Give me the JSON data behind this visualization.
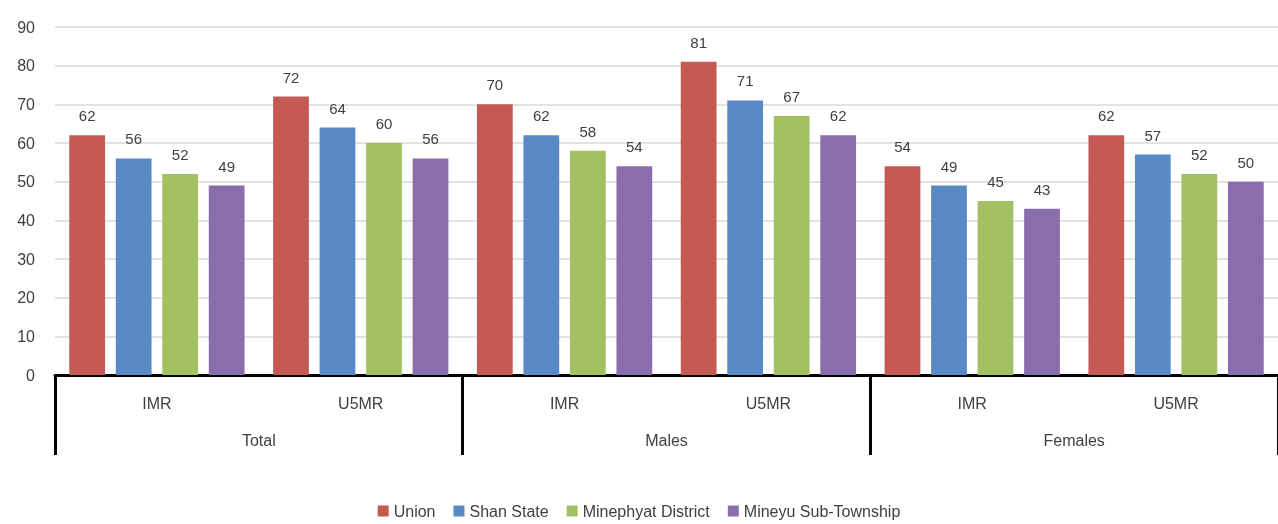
{
  "chart_data": {
    "type": "bar",
    "categories": [
      "IMR",
      "U5MR",
      "IMR",
      "U5MR",
      "IMR",
      "U5MR"
    ],
    "series": [
      {
        "name": "Union",
        "color": "#c55a55",
        "values": [
          62,
          72,
          70,
          81,
          54,
          62
        ]
      },
      {
        "name": "Shan State",
        "color": "#5a8ac6",
        "values": [
          56,
          64,
          62,
          71,
          49,
          57
        ]
      },
      {
        "name": "Minephyat District",
        "color": "#a3c063",
        "values": [
          52,
          60,
          58,
          67,
          45,
          52
        ]
      },
      {
        "name": "Mineyu Sub-Township",
        "color": "#8a6dab",
        "values": [
          49,
          56,
          54,
          62,
          43,
          50
        ]
      }
    ],
    "annotations": [
      "Total",
      "Males",
      "Females"
    ],
    "ylim": [
      0,
      90
    ],
    "yticks": [
      0,
      10,
      20,
      30,
      40,
      50,
      60,
      70,
      80,
      90
    ],
    "grid": "y",
    "legend": "bottom",
    "data_labels": true
  }
}
